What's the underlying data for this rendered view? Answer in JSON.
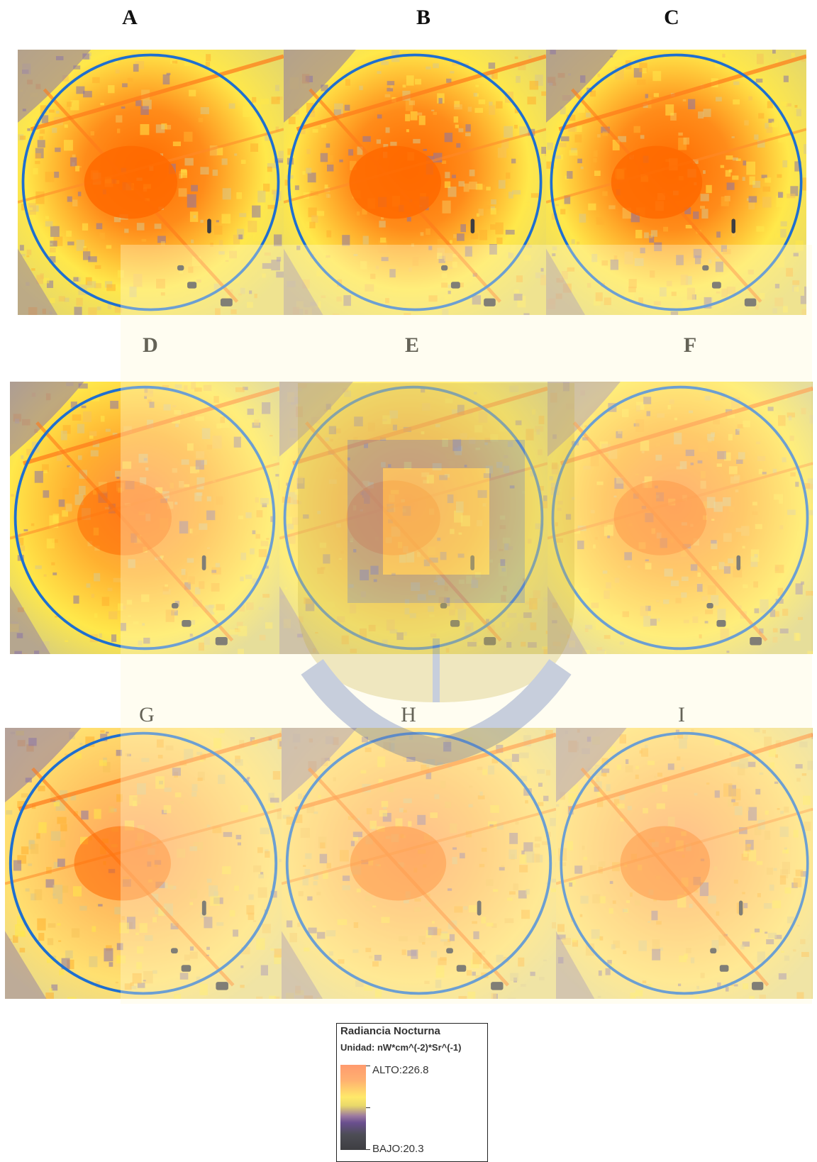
{
  "panels": [
    {
      "label": "A",
      "bold": true,
      "tone": "strong"
    },
    {
      "label": "B",
      "bold": true,
      "tone": "strong"
    },
    {
      "label": "C",
      "bold": true,
      "tone": "strong"
    },
    {
      "label": "D",
      "bold": true,
      "tone": "medium"
    },
    {
      "label": "E",
      "bold": true,
      "tone": "medium"
    },
    {
      "label": "F",
      "bold": true,
      "tone": "medium"
    },
    {
      "label": "G",
      "bold": false,
      "tone": "soft"
    },
    {
      "label": "H",
      "bold": false,
      "tone": "soft"
    },
    {
      "label": "I",
      "bold": false,
      "tone": "soft"
    }
  ],
  "legend": {
    "title": "Radiancia Nocturna",
    "unit": "Unidad: nW*cm^(-2)*Sr^(-1)",
    "high_label": "ALTO:226.8",
    "low_label": "BAJO:20.3",
    "high_value": 226.8,
    "low_value": 20.3,
    "ramp_colors": [
      "#ff9a6e",
      "#ffe96a",
      "#6a4f8f",
      "#3e3e42"
    ]
  },
  "colors": {
    "circle": "#1e6fd0",
    "hot": "#ff6a00",
    "mid": "#ffb030",
    "warm": "#ffe84a",
    "cool": "#8a74a8",
    "dark": "#3d3d42"
  }
}
